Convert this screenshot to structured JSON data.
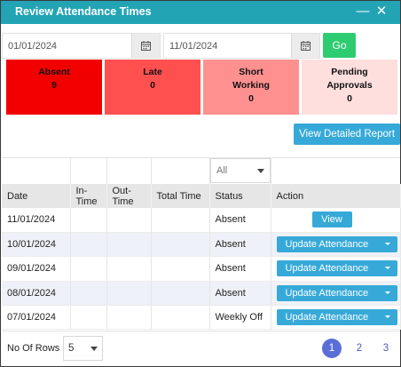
{
  "window": {
    "title": "Review Attendance Times"
  },
  "filters": {
    "from_date": "01/01/2024",
    "to_date": "11/01/2024",
    "go_label": "Go",
    "status_filter": "All"
  },
  "summary": [
    {
      "line1": "Absent",
      "line2": "",
      "value": "9",
      "color": "#f20000"
    },
    {
      "line1": "Late",
      "line2": "",
      "value": "0",
      "color": "#ff5050"
    },
    {
      "line1": "Short",
      "line2": "Working",
      "value": "0",
      "color": "#ff9090"
    },
    {
      "line1": "Pending",
      "line2": "Approvals",
      "value": "0",
      "color": "#ffdede"
    }
  ],
  "detailed_report_label": "View Detailed Report",
  "table": {
    "headers": [
      "Date",
      "In-Time",
      "Out-Time",
      "Total Time",
      "Status",
      "Action"
    ],
    "rows": [
      {
        "date": "11/01/2024",
        "in_time": "",
        "out_time": "",
        "total_time": "",
        "status": "Absent",
        "action": "View"
      },
      {
        "date": "10/01/2024",
        "in_time": "",
        "out_time": "",
        "total_time": "",
        "status": "Absent",
        "action": "Update Attendance"
      },
      {
        "date": "09/01/2024",
        "in_time": "",
        "out_time": "",
        "total_time": "",
        "status": "Absent",
        "action": "Update Attendance"
      },
      {
        "date": "08/01/2024",
        "in_time": "",
        "out_time": "",
        "total_time": "",
        "status": "Absent",
        "action": "Update Attendance"
      },
      {
        "date": "07/01/2024",
        "in_time": "",
        "out_time": "",
        "total_time": "",
        "status": "Weekly Off",
        "action": "Update Attendance"
      }
    ]
  },
  "pagination": {
    "rows_label": "No Of Rows :",
    "rows_value": "5",
    "pages": [
      "1",
      "2",
      "3"
    ],
    "current_page": "1"
  },
  "colors": {
    "title_bar": "#22a4b4",
    "primary_button": "#36a9d8",
    "go_button": "#2ecc71",
    "active_page": "#5a6ed8"
  },
  "icons": {
    "minimize": "minimize-icon",
    "close": "close-icon",
    "calendar": "calendar-icon",
    "dropdown": "caret-down-icon"
  }
}
